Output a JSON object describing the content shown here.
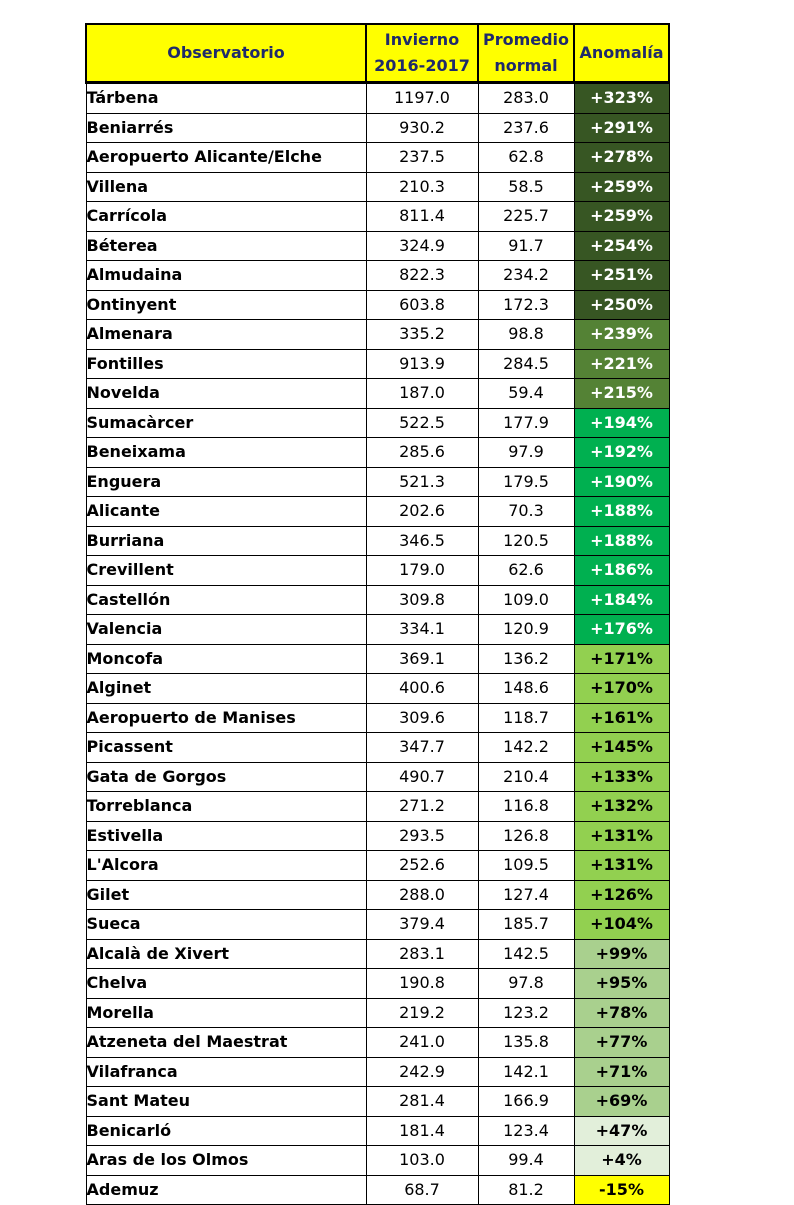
{
  "headers": {
    "observatorio": "Observatorio",
    "invierno": [
      "Invierno",
      "2016-2017"
    ],
    "promedio": [
      "Promedio",
      "normal"
    ],
    "anomalia": "Anomalía"
  },
  "colors": {
    "header_bg": "#ffff00",
    "header_text": "#1f2a6b",
    "dark_green": "#375623",
    "olive_green": "#548235",
    "bright_green": "#00b050",
    "light_green": "#92d050",
    "pale_green": "#a9d08e",
    "very_pale_green": "#e2efda",
    "yellow": "#ffff00"
  },
  "rows": [
    {
      "name": "Tárbena",
      "invierno": "1197.0",
      "promedio": "283.0",
      "anomalia": "+323%",
      "tier": "dark_green"
    },
    {
      "name": "Beniarrés",
      "invierno": "930.2",
      "promedio": "237.6",
      "anomalia": "+291%",
      "tier": "dark_green"
    },
    {
      "name": "Aeropuerto Alicante/Elche",
      "invierno": "237.5",
      "promedio": "62.8",
      "anomalia": "+278%",
      "tier": "dark_green"
    },
    {
      "name": "Villena",
      "invierno": "210.3",
      "promedio": "58.5",
      "anomalia": "+259%",
      "tier": "dark_green"
    },
    {
      "name": "Carrícola",
      "invierno": "811.4",
      "promedio": "225.7",
      "anomalia": "+259%",
      "tier": "dark_green"
    },
    {
      "name": "Béterea",
      "invierno": "324.9",
      "promedio": "91.7",
      "anomalia": "+254%",
      "tier": "dark_green"
    },
    {
      "name": "Almudaina",
      "invierno": "822.3",
      "promedio": "234.2",
      "anomalia": "+251%",
      "tier": "dark_green"
    },
    {
      "name": "Ontinyent",
      "invierno": "603.8",
      "promedio": "172.3",
      "anomalia": "+250%",
      "tier": "dark_green"
    },
    {
      "name": "Almenara",
      "invierno": "335.2",
      "promedio": "98.8",
      "anomalia": "+239%",
      "tier": "olive_green"
    },
    {
      "name": "Fontilles",
      "invierno": "913.9",
      "promedio": "284.5",
      "anomalia": "+221%",
      "tier": "olive_green"
    },
    {
      "name": "Novelda",
      "invierno": "187.0",
      "promedio": "59.4",
      "anomalia": "+215%",
      "tier": "olive_green"
    },
    {
      "name": "Sumacàrcer",
      "invierno": "522.5",
      "promedio": "177.9",
      "anomalia": "+194%",
      "tier": "bright_green"
    },
    {
      "name": "Beneixama",
      "invierno": "285.6",
      "promedio": "97.9",
      "anomalia": "+192%",
      "tier": "bright_green"
    },
    {
      "name": "Enguera",
      "invierno": "521.3",
      "promedio": "179.5",
      "anomalia": "+190%",
      "tier": "bright_green"
    },
    {
      "name": "Alicante",
      "invierno": "202.6",
      "promedio": "70.3",
      "anomalia": "+188%",
      "tier": "bright_green"
    },
    {
      "name": "Burriana",
      "invierno": "346.5",
      "promedio": "120.5",
      "anomalia": "+188%",
      "tier": "bright_green"
    },
    {
      "name": "Crevillent",
      "invierno": "179.0",
      "promedio": "62.6",
      "anomalia": "+186%",
      "tier": "bright_green"
    },
    {
      "name": "Castellón",
      "invierno": "309.8",
      "promedio": "109.0",
      "anomalia": "+184%",
      "tier": "bright_green"
    },
    {
      "name": "Valencia",
      "invierno": "334.1",
      "promedio": "120.9",
      "anomalia": "+176%",
      "tier": "bright_green"
    },
    {
      "name": "Moncofa",
      "invierno": "369.1",
      "promedio": "136.2",
      "anomalia": "+171%",
      "tier": "light_green"
    },
    {
      "name": "Alginet",
      "invierno": "400.6",
      "promedio": "148.6",
      "anomalia": "+170%",
      "tier": "light_green"
    },
    {
      "name": "Aeropuerto de Manises",
      "invierno": "309.6",
      "promedio": "118.7",
      "anomalia": "+161%",
      "tier": "light_green"
    },
    {
      "name": "Picassent",
      "invierno": "347.7",
      "promedio": "142.2",
      "anomalia": "+145%",
      "tier": "light_green"
    },
    {
      "name": "Gata de Gorgos",
      "invierno": "490.7",
      "promedio": "210.4",
      "anomalia": "+133%",
      "tier": "light_green"
    },
    {
      "name": "Torreblanca",
      "invierno": "271.2",
      "promedio": "116.8",
      "anomalia": "+132%",
      "tier": "light_green"
    },
    {
      "name": "Estivella",
      "invierno": "293.5",
      "promedio": "126.8",
      "anomalia": "+131%",
      "tier": "light_green"
    },
    {
      "name": "L'Alcora",
      "invierno": "252.6",
      "promedio": "109.5",
      "anomalia": "+131%",
      "tier": "light_green"
    },
    {
      "name": "Gilet",
      "invierno": "288.0",
      "promedio": "127.4",
      "anomalia": "+126%",
      "tier": "light_green"
    },
    {
      "name": "Sueca",
      "invierno": "379.4",
      "promedio": "185.7",
      "anomalia": "+104%",
      "tier": "light_green"
    },
    {
      "name": "Alcalà de Xivert",
      "invierno": "283.1",
      "promedio": "142.5",
      "anomalia": "+99%",
      "tier": "pale_green"
    },
    {
      "name": "Chelva",
      "invierno": "190.8",
      "promedio": "97.8",
      "anomalia": "+95%",
      "tier": "pale_green"
    },
    {
      "name": "Morella",
      "invierno": "219.2",
      "promedio": "123.2",
      "anomalia": "+78%",
      "tier": "pale_green"
    },
    {
      "name": "Atzeneta del Maestrat",
      "invierno": "241.0",
      "promedio": "135.8",
      "anomalia": "+77%",
      "tier": "pale_green"
    },
    {
      "name": "Vilafranca",
      "invierno": "242.9",
      "promedio": "142.1",
      "anomalia": "+71%",
      "tier": "pale_green"
    },
    {
      "name": "Sant Mateu",
      "invierno": "281.4",
      "promedio": "166.9",
      "anomalia": "+69%",
      "tier": "pale_green"
    },
    {
      "name": "Benicarló",
      "invierno": "181.4",
      "promedio": "123.4",
      "anomalia": "+47%",
      "tier": "very_pale_green"
    },
    {
      "name": "Aras de los Olmos",
      "invierno": "103.0",
      "promedio": "99.4",
      "anomalia": "+4%",
      "tier": "very_pale_green"
    },
    {
      "name": "Ademuz",
      "invierno": "68.7",
      "promedio": "81.2",
      "anomalia": "-15%",
      "tier": "yellow"
    }
  ]
}
